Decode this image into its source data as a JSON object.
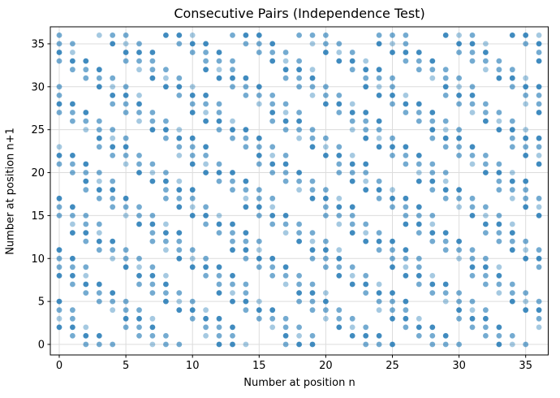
{
  "chart_data": {
    "type": "scatter",
    "title": "Consecutive Pairs (Independence Test)",
    "xlabel": "Number at position n",
    "ylabel": "Number at position n+1",
    "xticks": [
      0,
      5,
      10,
      15,
      20,
      25,
      30,
      35
    ],
    "yticks": [
      0,
      5,
      10,
      15,
      20,
      25,
      30,
      35
    ],
    "xlim": [
      -0.7,
      36.7
    ],
    "ylim": [
      -1.25,
      37.1
    ],
    "grid": true,
    "grid_color": "#dcdcdc",
    "axis_color": "#000000",
    "text_color": "#000000",
    "marker_color": "#1f77b4",
    "marker_alpha_levels": [
      0.4,
      0.62,
      0.85
    ],
    "points_by_x": {
      "0": [
        2,
        3,
        4,
        5,
        8,
        9,
        10,
        11,
        15,
        16,
        17,
        21,
        22,
        23,
        27,
        28,
        29,
        30,
        33,
        34,
        35,
        36
      ],
      "1": [
        1,
        2,
        3,
        4,
        7,
        8,
        9,
        10,
        13,
        14,
        15,
        16,
        20,
        21,
        22,
        26,
        27,
        28,
        32,
        33,
        34,
        35
      ],
      "2": [
        0,
        1,
        2,
        6,
        7,
        8,
        9,
        12,
        13,
        14,
        15,
        18,
        19,
        20,
        21,
        25,
        26,
        27,
        31,
        32,
        33
      ],
      "3": [
        0,
        1,
        5,
        6,
        7,
        11,
        12,
        13,
        14,
        17,
        18,
        19,
        20,
        23,
        24,
        25,
        26,
        30,
        31,
        32,
        36
      ],
      "4": [
        0,
        4,
        5,
        6,
        10,
        11,
        12,
        16,
        17,
        18,
        19,
        22,
        23,
        24,
        25,
        28,
        29,
        30,
        31,
        35,
        36
      ],
      "5": [
        2,
        3,
        4,
        5,
        9,
        10,
        11,
        15,
        16,
        17,
        21,
        22,
        23,
        24,
        27,
        28,
        29,
        30,
        33,
        34,
        35,
        36
      ],
      "6": [
        1,
        2,
        3,
        4,
        7,
        8,
        9,
        10,
        14,
        15,
        16,
        20,
        21,
        22,
        26,
        27,
        28,
        29,
        32,
        33,
        34,
        35
      ],
      "7": [
        0,
        1,
        2,
        3,
        6,
        7,
        8,
        9,
        12,
        13,
        14,
        15,
        19,
        20,
        21,
        25,
        26,
        27,
        31,
        32,
        33,
        34
      ],
      "8": [
        0,
        1,
        5,
        6,
        7,
        8,
        11,
        12,
        13,
        14,
        17,
        18,
        19,
        20,
        24,
        25,
        26,
        30,
        31,
        32,
        36
      ],
      "9": [
        0,
        4,
        5,
        6,
        10,
        11,
        12,
        13,
        16,
        17,
        18,
        19,
        22,
        23,
        24,
        25,
        29,
        30,
        31,
        35,
        36
      ],
      "10": [
        3,
        4,
        5,
        9,
        10,
        11,
        15,
        16,
        17,
        18,
        21,
        22,
        23,
        24,
        27,
        28,
        29,
        30,
        34,
        35,
        36
      ],
      "11": [
        1,
        2,
        3,
        4,
        8,
        9,
        10,
        14,
        15,
        16,
        20,
        21,
        22,
        23,
        26,
        27,
        28,
        29,
        32,
        33,
        34,
        35
      ],
      "12": [
        0,
        1,
        2,
        3,
        6,
        7,
        8,
        9,
        13,
        14,
        15,
        19,
        20,
        21,
        25,
        26,
        27,
        28,
        31,
        32,
        33,
        34
      ],
      "13": [
        0,
        1,
        2,
        5,
        6,
        7,
        8,
        11,
        12,
        13,
        14,
        18,
        19,
        20,
        24,
        25,
        26,
        30,
        31,
        32,
        33,
        36
      ],
      "14": [
        0,
        4,
        5,
        6,
        7,
        10,
        11,
        12,
        13,
        16,
        17,
        18,
        19,
        23,
        24,
        25,
        29,
        30,
        31,
        35,
        36
      ],
      "15": [
        3,
        4,
        5,
        9,
        10,
        11,
        12,
        15,
        16,
        17,
        18,
        21,
        22,
        23,
        24,
        28,
        29,
        30,
        34,
        35,
        36
      ],
      "16": [
        2,
        3,
        4,
        8,
        9,
        10,
        14,
        15,
        16,
        17,
        20,
        21,
        22,
        23,
        26,
        27,
        28,
        29,
        33,
        34,
        35
      ],
      "17": [
        0,
        1,
        2,
        3,
        7,
        8,
        9,
        13,
        14,
        15,
        19,
        20,
        21,
        22,
        25,
        26,
        27,
        28,
        31,
        32,
        33,
        34
      ],
      "18": [
        0,
        1,
        2,
        5,
        6,
        7,
        8,
        12,
        13,
        14,
        18,
        19,
        20,
        24,
        25,
        26,
        27,
        30,
        31,
        32,
        33,
        36
      ],
      "19": [
        0,
        1,
        4,
        5,
        6,
        7,
        10,
        11,
        12,
        13,
        17,
        18,
        19,
        23,
        24,
        25,
        29,
        30,
        31,
        32,
        35,
        36
      ],
      "20": [
        3,
        4,
        5,
        6,
        9,
        10,
        11,
        12,
        15,
        16,
        17,
        18,
        22,
        23,
        24,
        28,
        29,
        30,
        34,
        35,
        36
      ],
      "21": [
        2,
        3,
        4,
        8,
        9,
        10,
        11,
        14,
        15,
        16,
        17,
        20,
        21,
        22,
        23,
        27,
        28,
        29,
        33,
        34,
        35
      ],
      "22": [
        1,
        2,
        3,
        7,
        8,
        9,
        13,
        14,
        15,
        16,
        19,
        20,
        21,
        22,
        25,
        26,
        27,
        28,
        32,
        33,
        34
      ],
      "23": [
        0,
        1,
        2,
        6,
        7,
        8,
        12,
        13,
        14,
        18,
        19,
        20,
        21,
        24,
        25,
        26,
        27,
        30,
        31,
        32,
        33
      ],
      "24": [
        0,
        1,
        4,
        5,
        6,
        7,
        11,
        12,
        13,
        17,
        18,
        19,
        23,
        24,
        25,
        26,
        29,
        30,
        31,
        32,
        35,
        36
      ],
      "25": [
        0,
        3,
        4,
        5,
        6,
        9,
        10,
        11,
        12,
        16,
        17,
        18,
        22,
        23,
        24,
        28,
        29,
        30,
        31,
        34,
        35,
        36
      ],
      "26": [
        2,
        3,
        4,
        5,
        8,
        9,
        10,
        11,
        14,
        15,
        16,
        17,
        21,
        22,
        23,
        27,
        28,
        29,
        33,
        34,
        35,
        36
      ],
      "27": [
        1,
        2,
        3,
        7,
        8,
        9,
        10,
        13,
        14,
        15,
        16,
        19,
        20,
        21,
        22,
        26,
        27,
        28,
        32,
        33,
        34
      ],
      "28": [
        0,
        1,
        2,
        6,
        7,
        8,
        12,
        13,
        14,
        15,
        18,
        19,
        20,
        21,
        24,
        25,
        26,
        27,
        31,
        32,
        33
      ],
      "29": [
        0,
        1,
        5,
        6,
        7,
        11,
        12,
        13,
        17,
        18,
        19,
        20,
        23,
        24,
        25,
        26,
        29,
        30,
        31,
        32,
        36
      ],
      "30": [
        0,
        3,
        4,
        5,
        6,
        10,
        11,
        12,
        16,
        17,
        18,
        22,
        23,
        24,
        25,
        28,
        29,
        30,
        31,
        34,
        35,
        36
      ],
      "31": [
        2,
        3,
        4,
        5,
        8,
        9,
        10,
        11,
        15,
        16,
        17,
        21,
        22,
        23,
        27,
        28,
        29,
        30,
        33,
        34,
        35,
        36
      ],
      "32": [
        1,
        2,
        3,
        4,
        7,
        8,
        9,
        10,
        13,
        14,
        15,
        16,
        20,
        21,
        22,
        26,
        27,
        28,
        32,
        33,
        34,
        35
      ],
      "33": [
        0,
        1,
        2,
        6,
        7,
        8,
        9,
        12,
        13,
        14,
        15,
        18,
        19,
        20,
        21,
        25,
        26,
        27,
        31,
        32,
        33
      ],
      "34": [
        0,
        1,
        5,
        6,
        7,
        11,
        12,
        13,
        14,
        17,
        18,
        19,
        20,
        23,
        24,
        25,
        26,
        30,
        31,
        32,
        36
      ],
      "35": [
        0,
        4,
        5,
        6,
        10,
        11,
        12,
        16,
        17,
        18,
        19,
        22,
        23,
        24,
        25,
        28,
        29,
        30,
        31,
        35,
        36
      ],
      "36": [
        2,
        3,
        4,
        5,
        9,
        10,
        11,
        15,
        16,
        17,
        21,
        22,
        23,
        24,
        27,
        28,
        29,
        30,
        33,
        34,
        35,
        36
      ]
    }
  }
}
